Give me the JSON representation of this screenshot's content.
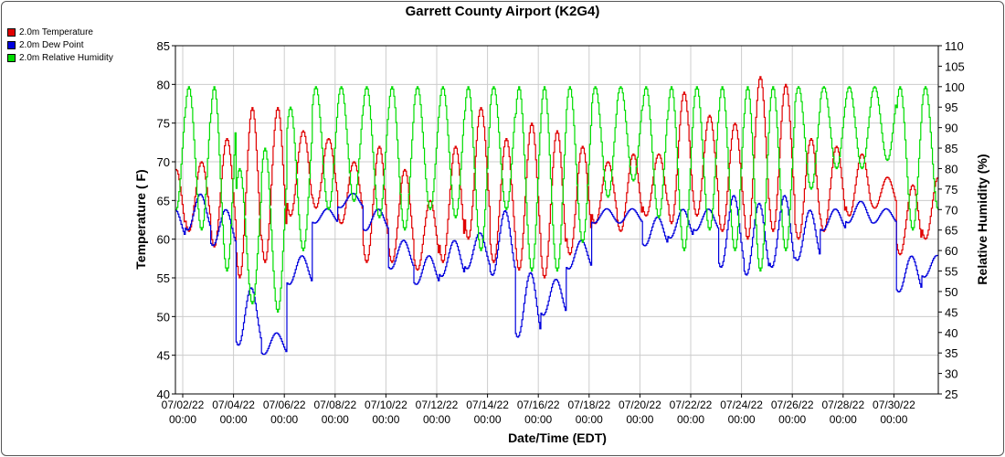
{
  "chart_data": {
    "type": "line",
    "title": "Garrett County Airport (K2G4)",
    "xlabel": "Date/Time (EDT)",
    "ylabel": "Temperature ( F)",
    "y2label": "Relative Humidity (%)",
    "ylim": [
      40,
      85
    ],
    "y2lim": [
      25,
      110
    ],
    "yticks": [
      "40",
      "45",
      "50",
      "55",
      "60",
      "65",
      "70",
      "75",
      "80",
      "85"
    ],
    "y2ticks": [
      "25",
      "30",
      "35",
      "40",
      "45",
      "50",
      "55",
      "60",
      "65",
      "70",
      "75",
      "80",
      "85",
      "90",
      "95",
      "100",
      "105",
      "110"
    ],
    "xlim_days": [
      0,
      30
    ],
    "xticks": [
      {
        "d": "07/02/22",
        "t": "00:00"
      },
      {
        "d": "07/04/22",
        "t": "00:00"
      },
      {
        "d": "07/06/22",
        "t": "00:00"
      },
      {
        "d": "07/08/22",
        "t": "00:00"
      },
      {
        "d": "07/10/22",
        "t": "00:00"
      },
      {
        "d": "07/12/22",
        "t": "00:00"
      },
      {
        "d": "07/14/22",
        "t": "00:00"
      },
      {
        "d": "07/16/22",
        "t": "00:00"
      },
      {
        "d": "07/18/22",
        "t": "00:00"
      },
      {
        "d": "07/20/22",
        "t": "00:00"
      },
      {
        "d": "07/22/22",
        "t": "00:00"
      },
      {
        "d": "07/24/22",
        "t": "00:00"
      },
      {
        "d": "07/26/22",
        "t": "00:00"
      },
      {
        "d": "07/28/22",
        "t": "00:00"
      },
      {
        "d": "07/30/22",
        "t": "00:00"
      }
    ],
    "grid": true,
    "legend_position": "top-left",
    "series": [
      {
        "name": "2.0m Temperature",
        "color": "#e00000",
        "axis": "left",
        "daily": [
          [
            69,
            60
          ],
          [
            70,
            61
          ],
          [
            73,
            59
          ],
          [
            77,
            55
          ],
          [
            77,
            57
          ],
          [
            74,
            63
          ],
          [
            73,
            64
          ],
          [
            70,
            62
          ],
          [
            72,
            57
          ],
          [
            69,
            57
          ],
          [
            65,
            56
          ],
          [
            72,
            57
          ],
          [
            77,
            60
          ],
          [
            73,
            57
          ],
          [
            75,
            56
          ],
          [
            74,
            55
          ],
          [
            72,
            58
          ],
          [
            70,
            62
          ],
          [
            71,
            61
          ],
          [
            71,
            63
          ],
          [
            79,
            62
          ],
          [
            76,
            63
          ],
          [
            75,
            61
          ],
          [
            81,
            60
          ],
          [
            80,
            61
          ],
          [
            73,
            60
          ],
          [
            72,
            61
          ],
          [
            71,
            63
          ],
          [
            68,
            64
          ],
          [
            67,
            58
          ],
          [
            68,
            60
          ]
        ]
      },
      {
        "name": "2.0m Dew Point",
        "color": "#0000dd",
        "axis": "left",
        "daily": [
          [
            64,
            60
          ],
          [
            66,
            61
          ],
          [
            64,
            59
          ],
          [
            54,
            46
          ],
          [
            48,
            45
          ],
          [
            58,
            54
          ],
          [
            64,
            62
          ],
          [
            66,
            64
          ],
          [
            64,
            61
          ],
          [
            60,
            56
          ],
          [
            58,
            54
          ],
          [
            60,
            55
          ],
          [
            61,
            56
          ],
          [
            64,
            55
          ],
          [
            56,
            47
          ],
          [
            55,
            50
          ],
          [
            60,
            56
          ],
          [
            64,
            62
          ],
          [
            64,
            62
          ],
          [
            63,
            59
          ],
          [
            64,
            60
          ],
          [
            64,
            61
          ],
          [
            66,
            56
          ],
          [
            65,
            55
          ],
          [
            66,
            56
          ],
          [
            64,
            57
          ],
          [
            64,
            61
          ],
          [
            65,
            62
          ],
          [
            64,
            62
          ],
          [
            58,
            53
          ],
          [
            58,
            55
          ]
        ]
      },
      {
        "name": "2.0m Relative Humidity",
        "color": "#00dd00",
        "axis": "right",
        "daily": [
          [
            100,
            70
          ],
          [
            100,
            65
          ],
          [
            100,
            55
          ],
          [
            80,
            47
          ],
          [
            85,
            45
          ],
          [
            95,
            60
          ],
          [
            100,
            70
          ],
          [
            100,
            72
          ],
          [
            100,
            68
          ],
          [
            100,
            65
          ],
          [
            100,
            70
          ],
          [
            100,
            68
          ],
          [
            100,
            60
          ],
          [
            100,
            70
          ],
          [
            100,
            55
          ],
          [
            100,
            55
          ],
          [
            100,
            62
          ],
          [
            100,
            73
          ],
          [
            100,
            77
          ],
          [
            100,
            68
          ],
          [
            100,
            60
          ],
          [
            100,
            65
          ],
          [
            100,
            60
          ],
          [
            100,
            55
          ],
          [
            100,
            60
          ],
          [
            100,
            75
          ],
          [
            100,
            80
          ],
          [
            100,
            80
          ],
          [
            100,
            82
          ],
          [
            100,
            65
          ],
          [
            100,
            70
          ]
        ]
      }
    ]
  }
}
